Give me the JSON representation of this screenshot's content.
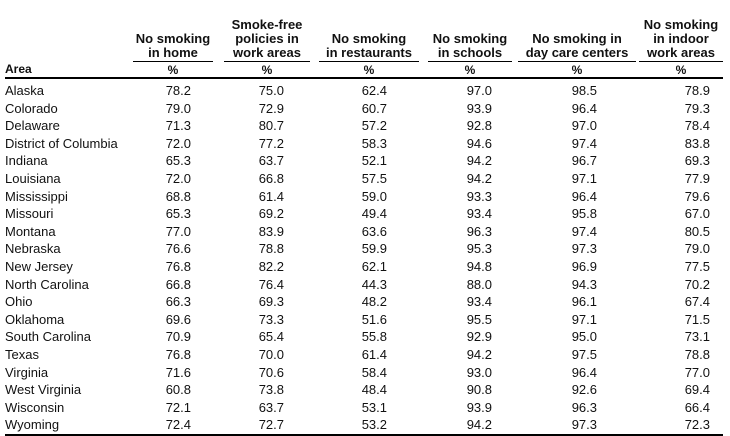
{
  "header": {
    "area_label": "Area",
    "columns": [
      {
        "title": "No smoking\nin home",
        "unit": "%"
      },
      {
        "title": "Smoke-free\npolicies in\nwork areas",
        "unit": "%"
      },
      {
        "title": "No smoking\nin restaurants",
        "unit": "%"
      },
      {
        "title": "No smoking\nin schools",
        "unit": "%"
      },
      {
        "title": "No smoking in\nday care centers",
        "unit": "%"
      },
      {
        "title": "No smoking\nin indoor\nwork areas",
        "unit": "%"
      }
    ]
  },
  "rows": [
    {
      "area": "Alaska",
      "values": [
        "78.2",
        "75.0",
        "62.4",
        "97.0",
        "98.5",
        "78.9"
      ]
    },
    {
      "area": "Colorado",
      "values": [
        "79.0",
        "72.9",
        "60.7",
        "93.9",
        "96.4",
        "79.3"
      ]
    },
    {
      "area": "Delaware",
      "values": [
        "71.3",
        "80.7",
        "57.2",
        "92.8",
        "97.0",
        "78.4"
      ]
    },
    {
      "area": "District of Columbia",
      "values": [
        "72.0",
        "77.2",
        "58.3",
        "94.6",
        "97.4",
        "83.8"
      ]
    },
    {
      "area": "Indiana",
      "values": [
        "65.3",
        "63.7",
        "52.1",
        "94.2",
        "96.7",
        "69.3"
      ]
    },
    {
      "area": "Louisiana",
      "values": [
        "72.0",
        "66.8",
        "57.5",
        "94.2",
        "97.1",
        "77.9"
      ]
    },
    {
      "area": "Mississippi",
      "values": [
        "68.8",
        "61.4",
        "59.0",
        "93.3",
        "96.4",
        "79.6"
      ]
    },
    {
      "area": "Missouri",
      "values": [
        "65.3",
        "69.2",
        "49.4",
        "93.4",
        "95.8",
        "67.0"
      ]
    },
    {
      "area": "Montana",
      "values": [
        "77.0",
        "83.9",
        "63.6",
        "96.3",
        "97.4",
        "80.5"
      ]
    },
    {
      "area": "Nebraska",
      "values": [
        "76.6",
        "78.8",
        "59.9",
        "95.3",
        "97.3",
        "79.0"
      ]
    },
    {
      "area": "New Jersey",
      "values": [
        "76.8",
        "82.2",
        "62.1",
        "94.8",
        "96.9",
        "77.5"
      ]
    },
    {
      "area": "North Carolina",
      "values": [
        "66.8",
        "76.4",
        "44.3",
        "88.0",
        "94.3",
        "70.2"
      ]
    },
    {
      "area": "Ohio",
      "values": [
        "66.3",
        "69.3",
        "48.2",
        "93.4",
        "96.1",
        "67.4"
      ]
    },
    {
      "area": "Oklahoma",
      "values": [
        "69.6",
        "73.3",
        "51.6",
        "95.5",
        "97.1",
        "71.5"
      ]
    },
    {
      "area": "South Carolina",
      "values": [
        "70.9",
        "65.4",
        "55.8",
        "92.9",
        "95.0",
        "73.1"
      ]
    },
    {
      "area": "Texas",
      "values": [
        "76.8",
        "70.0",
        "61.4",
        "94.2",
        "97.5",
        "78.8"
      ]
    },
    {
      "area": "Virginia",
      "values": [
        "71.6",
        "70.6",
        "58.4",
        "93.0",
        "96.4",
        "77.0"
      ]
    },
    {
      "area": "West Virginia",
      "values": [
        "60.8",
        "73.8",
        "48.4",
        "90.8",
        "92.6",
        "69.4"
      ]
    },
    {
      "area": "Wisconsin",
      "values": [
        "72.1",
        "63.7",
        "53.1",
        "93.9",
        "96.3",
        "66.4"
      ]
    },
    {
      "area": "Wyoming",
      "values": [
        "72.4",
        "72.7",
        "53.2",
        "94.2",
        "97.3",
        "72.3"
      ]
    }
  ]
}
